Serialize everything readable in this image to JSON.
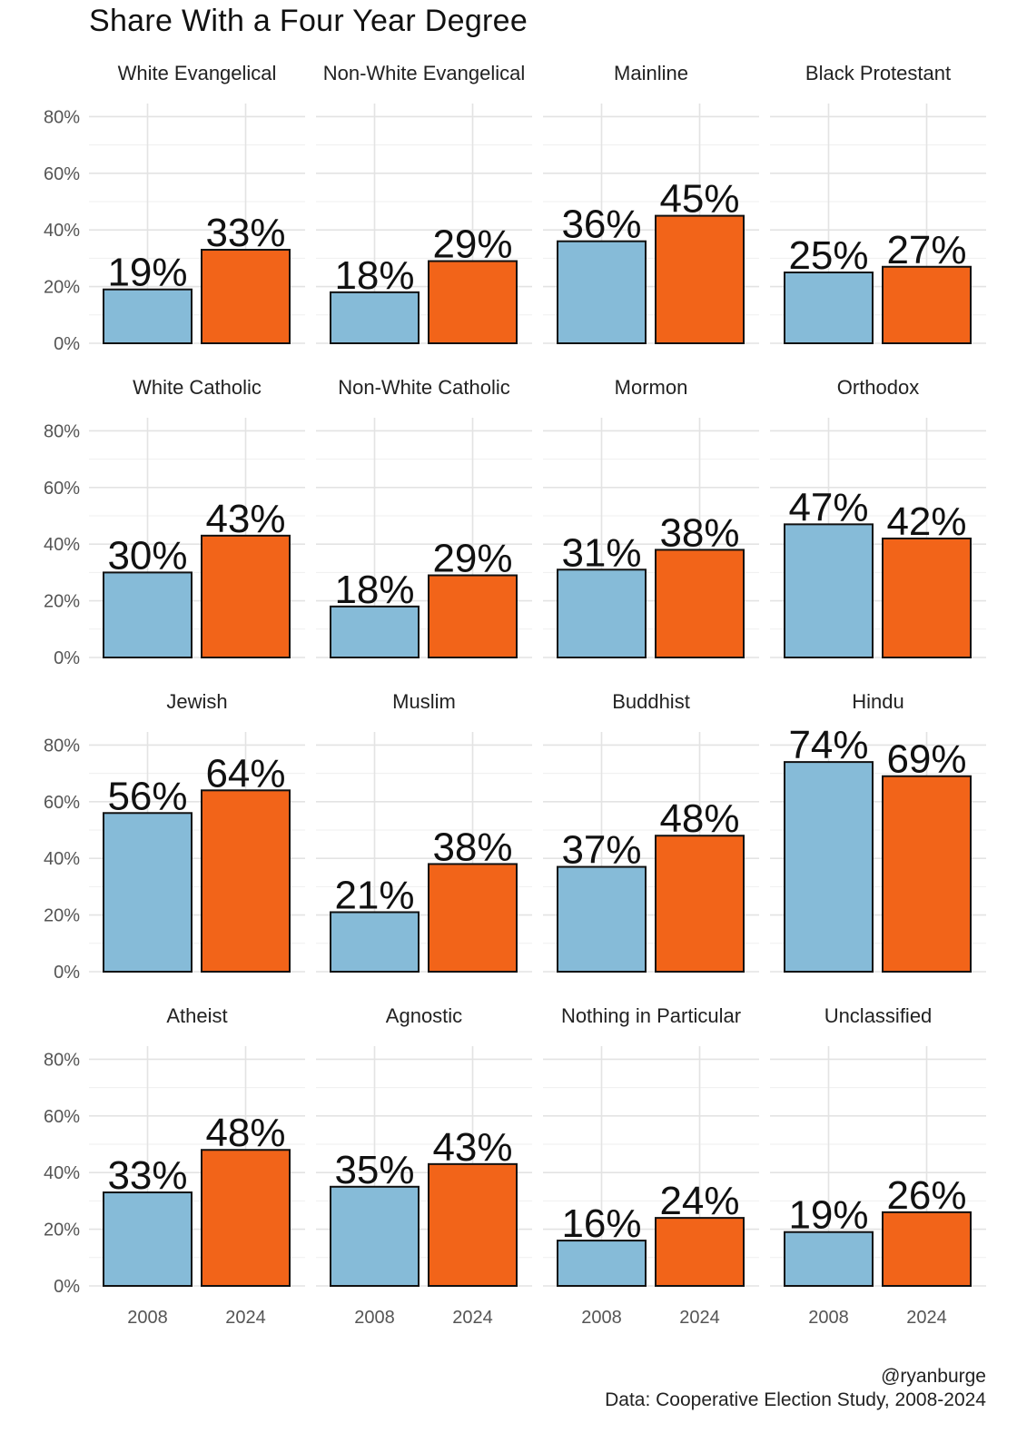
{
  "chart_data": {
    "type": "bar",
    "title": "Share With a Four Year Degree",
    "xlabel": "",
    "ylabel": "",
    "ylim": [
      0,
      0.85
    ],
    "y_ticks": [
      "0%",
      "20%",
      "40%",
      "60%",
      "80%"
    ],
    "y_tick_values": [
      0,
      0.2,
      0.4,
      0.6,
      0.8
    ],
    "categories": [
      "2008",
      "2024"
    ],
    "colors": {
      "2008": "#86bbd8",
      "2024": "#f26419"
    },
    "facets": [
      {
        "name": "White Evangelical",
        "values": [
          0.19,
          0.33
        ],
        "labels": [
          "19%",
          "33%"
        ]
      },
      {
        "name": "Non-White Evangelical",
        "values": [
          0.18,
          0.29
        ],
        "labels": [
          "18%",
          "29%"
        ]
      },
      {
        "name": "Mainline",
        "values": [
          0.36,
          0.45
        ],
        "labels": [
          "36%",
          "45%"
        ]
      },
      {
        "name": "Black Protestant",
        "values": [
          0.25,
          0.27
        ],
        "labels": [
          "25%",
          "27%"
        ]
      },
      {
        "name": "White Catholic",
        "values": [
          0.3,
          0.43
        ],
        "labels": [
          "30%",
          "43%"
        ]
      },
      {
        "name": "Non-White Catholic",
        "values": [
          0.18,
          0.29
        ],
        "labels": [
          "18%",
          "29%"
        ]
      },
      {
        "name": "Mormon",
        "values": [
          0.31,
          0.38
        ],
        "labels": [
          "31%",
          "38%"
        ]
      },
      {
        "name": "Orthodox",
        "values": [
          0.47,
          0.42
        ],
        "labels": [
          "47%",
          "42%"
        ]
      },
      {
        "name": "Jewish",
        "values": [
          0.56,
          0.64
        ],
        "labels": [
          "56%",
          "64%"
        ]
      },
      {
        "name": "Muslim",
        "values": [
          0.21,
          0.38
        ],
        "labels": [
          "21%",
          "38%"
        ]
      },
      {
        "name": "Buddhist",
        "values": [
          0.37,
          0.48
        ],
        "labels": [
          "37%",
          "48%"
        ]
      },
      {
        "name": "Hindu",
        "values": [
          0.74,
          0.69
        ],
        "labels": [
          "74%",
          "69%"
        ]
      },
      {
        "name": "Atheist",
        "values": [
          0.33,
          0.48
        ],
        "labels": [
          "33%",
          "48%"
        ]
      },
      {
        "name": "Agnostic",
        "values": [
          0.35,
          0.43
        ],
        "labels": [
          "35%",
          "43%"
        ]
      },
      {
        "name": "Nothing in Particular",
        "values": [
          0.16,
          0.24
        ],
        "labels": [
          "16%",
          "24%"
        ]
      },
      {
        "name": "Unclassified",
        "values": [
          0.19,
          0.26
        ],
        "labels": [
          "19%",
          "26%"
        ]
      }
    ]
  },
  "caption": {
    "handle": "@ryanburge",
    "source": "Data: Cooperative Election Study, 2008-2024"
  }
}
